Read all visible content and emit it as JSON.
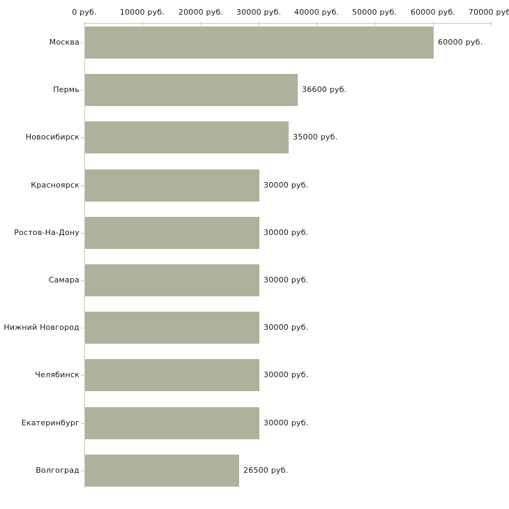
{
  "chart_data": {
    "type": "bar",
    "orientation": "horizontal",
    "title": "",
    "xlabel": "",
    "ylabel": "",
    "categories": [
      "Москва",
      "Пермь",
      "Новосибирск",
      "Красноярск",
      "Ростов-На-Дону",
      "Самара",
      "Нижний Новгород",
      "Челябинск",
      "Екатеринбург",
      "Волгоград"
    ],
    "values": [
      60000,
      36600,
      35000,
      30000,
      30000,
      30000,
      30000,
      30000,
      30000,
      26500
    ],
    "value_labels": [
      "60000 руб.",
      "36600 руб.",
      "35000 руб.",
      "30000 руб.",
      "30000 руб.",
      "30000 руб.",
      "30000 руб.",
      "30000 руб.",
      "30000 руб.",
      "26500 руб."
    ],
    "x_tick_values": [
      0,
      10000,
      20000,
      30000,
      40000,
      50000,
      60000,
      70000
    ],
    "x_tick_labels": [
      "0 руб.",
      "10000 руб.",
      "20000 руб.",
      "30000 руб.",
      "40000 руб.",
      "50000 руб.",
      "60000 руб.",
      "70000 руб."
    ],
    "xlim": [
      0,
      70000
    ],
    "grid": false,
    "legend": false,
    "colors": {
      "bar": "#adb39a",
      "axis_line": "#c6c6c6",
      "tick": "#cfcba2",
      "text": "#1a1a1a",
      "background": "#ffffff"
    }
  }
}
